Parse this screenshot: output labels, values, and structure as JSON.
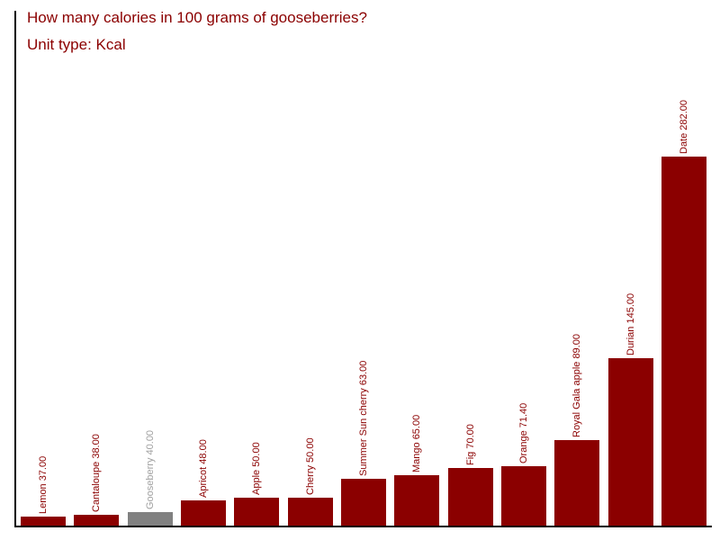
{
  "header": {
    "title": "How many calories in 100 grams of gooseberries?",
    "subtitle": "Unit type: Kcal"
  },
  "colors": {
    "bar": "#8B0000",
    "highlight_bar": "#808080",
    "label": "#8B0000",
    "highlight_label": "#A0A0A0",
    "title": "#8B0000",
    "axis": "#000000",
    "background": "#FFFFFF"
  },
  "chart_data": {
    "type": "bar",
    "title": "How many calories in 100 grams of gooseberries?",
    "subtitle": "Unit type: Kcal",
    "unit": "Kcal",
    "xlabel": "",
    "ylabel": "",
    "grid": false,
    "legend": false,
    "ylim": [
      30.87,
      282
    ],
    "categories": [
      "Lemon",
      "Cantaloupe",
      "Gooseberry",
      "Apricot",
      "Apple",
      "Cherry",
      "Summer Sun cherry",
      "Mango",
      "Fig",
      "Orange",
      "Royal Gala apple",
      "Durian",
      "Date"
    ],
    "values": [
      37.0,
      38.0,
      40.0,
      48.0,
      50.0,
      50.0,
      63.0,
      65.0,
      70.0,
      71.4,
      89.0,
      145.0,
      282.0
    ],
    "labels": [
      "Lemon 37.00",
      "Cantaloupe 38.00",
      "Gooseberry 40.00",
      "Apricot 48.00",
      "Apple 50.00",
      "Cherry 50.00",
      "Summer Sun cherry 63.00",
      "Mango 65.00",
      "Fig 70.00",
      "Orange 71.40",
      "Royal Gala apple 89.00",
      "Durian 145.00",
      "Date 282.00"
    ],
    "highlighted_category": "Gooseberry",
    "bar_label_rotation_deg": -90
  }
}
